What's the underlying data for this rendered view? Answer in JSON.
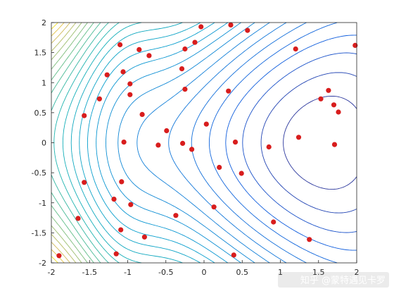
{
  "chart_data": {
    "type": "contour",
    "title": "",
    "xlabel": "",
    "ylabel": "",
    "xlim": [
      -2,
      2
    ],
    "ylim": [
      -2,
      2
    ],
    "x_ticks": [
      -2,
      -1.5,
      -1,
      -0.5,
      0,
      0.5,
      1,
      1.5,
      2
    ],
    "x_tick_labels": [
      "-2",
      "-1.5",
      "-1",
      "-0.5",
      "0",
      "0.5",
      "1",
      "1.5",
      "2"
    ],
    "y_ticks": [
      -2,
      -1.5,
      -1,
      -0.5,
      0,
      0.5,
      1,
      1.5,
      2
    ],
    "y_tick_labels": [
      "-2",
      "-1.5",
      "-1",
      "-0.5",
      "0",
      "0.5",
      "1",
      "1.5",
      "2"
    ],
    "grid": false,
    "colormap": "parula",
    "contour_note": "saddle-shaped surface with minimum near (1.6, 0) and maxima toward left corners",
    "marker_color": "#d81d1d",
    "points": [
      [
        -1.9,
        -1.88
      ],
      [
        -1.65,
        -1.26
      ],
      [
        -1.57,
        -0.66
      ],
      [
        -1.57,
        0.45
      ],
      [
        -1.37,
        0.73
      ],
      [
        -1.27,
        1.13
      ],
      [
        -1.18,
        -0.94
      ],
      [
        -1.15,
        -1.85
      ],
      [
        -1.1,
        1.63
      ],
      [
        -1.09,
        -1.45
      ],
      [
        -1.08,
        -0.65
      ],
      [
        -1.06,
        1.18
      ],
      [
        -1.05,
        0.01
      ],
      [
        -0.97,
        0.8
      ],
      [
        -0.97,
        0.98
      ],
      [
        -0.96,
        -1.03
      ],
      [
        -0.85,
        1.55
      ],
      [
        -0.81,
        0.47
      ],
      [
        -0.78,
        -1.57
      ],
      [
        -0.72,
        1.45
      ],
      [
        -0.6,
        -0.04
      ],
      [
        -0.49,
        0.2
      ],
      [
        -0.37,
        -1.21
      ],
      [
        -0.29,
        1.23
      ],
      [
        -0.28,
        -0.01
      ],
      [
        -0.25,
        0.89
      ],
      [
        -0.25,
        1.56
      ],
      [
        -0.16,
        -0.11
      ],
      [
        -0.12,
        1.67
      ],
      [
        -0.04,
        1.93
      ],
      [
        0.03,
        0.31
      ],
      [
        0.13,
        -1.07
      ],
      [
        0.2,
        -0.41
      ],
      [
        0.32,
        0.86
      ],
      [
        0.35,
        1.96
      ],
      [
        0.39,
        -1.87
      ],
      [
        0.41,
        0.01
      ],
      [
        0.49,
        -0.51
      ],
      [
        0.57,
        1.87
      ],
      [
        0.85,
        -0.07
      ],
      [
        0.91,
        -1.32
      ],
      [
        1.2,
        1.56
      ],
      [
        1.24,
        0.09
      ],
      [
        1.38,
        -1.61
      ],
      [
        1.53,
        0.73
      ],
      [
        1.63,
        0.87
      ],
      [
        1.7,
        0.63
      ],
      [
        1.71,
        -0.03
      ],
      [
        1.76,
        0.51
      ],
      [
        1.98,
        1.62
      ]
    ]
  },
  "watermark": {
    "text": "知乎 @蒙特遇见卡罗"
  }
}
